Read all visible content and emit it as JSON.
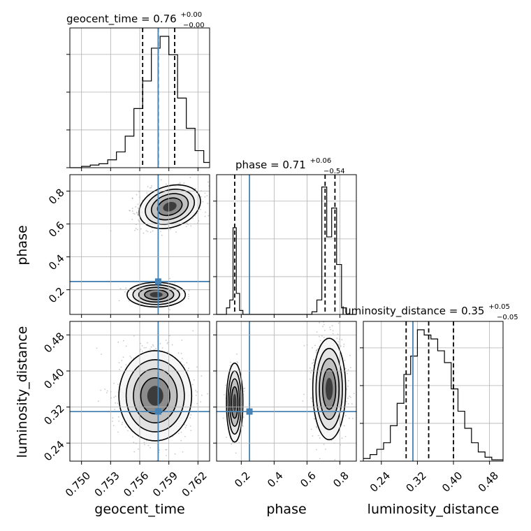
{
  "colors": {
    "truth": "#4682b4",
    "hist": "#000000",
    "grid": "#b0b0b0",
    "scatter": "#9a9a9a"
  },
  "titles": {
    "geocent_time": {
      "name": "geocent_time",
      "eq": " = ",
      "value": "0.76",
      "plus": "+0.00",
      "minus": "−0.00"
    },
    "phase": {
      "name": "phase",
      "eq": " = ",
      "value": "0.71",
      "plus": "+0.06",
      "minus": "−0.54"
    },
    "luminosity_distance": {
      "name": "luminosity_distance",
      "eq": " = ",
      "value": "0.35",
      "plus": "+0.05",
      "minus": "−0.05"
    }
  },
  "axis_labels": {
    "x0": "geocent_time",
    "x1": "phase",
    "x2": "luminosity_distance",
    "y1": "phase",
    "y2": "luminosity_distance"
  },
  "chart_data": {
    "type": "corner",
    "parameters": [
      "geocent_time",
      "phase",
      "luminosity_distance"
    ],
    "ranges": {
      "geocent_time": [
        0.7488,
        0.7632
      ],
      "phase": [
        0.05,
        0.9
      ],
      "luminosity_distance": [
        0.2,
        0.51
      ]
    },
    "ticks": {
      "geocent_time": [
        "0.750",
        "0.753",
        "0.756",
        "0.759",
        "0.762"
      ],
      "phase": [
        "0.2",
        "0.4",
        "0.6",
        "0.8"
      ],
      "luminosity_distance": [
        "0.24",
        "0.32",
        "0.40",
        "0.48"
      ]
    },
    "truths": {
      "geocent_time": 0.7579,
      "phase": 0.25,
      "luminosity_distance": 0.31
    },
    "quantiles": {
      "geocent_time": [
        0.7563,
        0.7579,
        0.7596
      ],
      "phase": [
        0.16,
        0.71,
        0.77
      ],
      "luminosity_distance": [
        0.295,
        0.345,
        0.4
      ]
    },
    "histograms": {
      "geocent_time": {
        "edges": [
          0.7488,
          0.75,
          0.7509,
          0.7518,
          0.7527,
          0.7536,
          0.7545,
          0.7554,
          0.7563,
          0.7572,
          0.7581,
          0.759,
          0.7599,
          0.7608,
          0.7617,
          0.7626,
          0.7632
        ],
        "counts": [
          0,
          0.01,
          0.02,
          0.03,
          0.06,
          0.12,
          0.24,
          0.45,
          0.66,
          0.91,
          1.0,
          0.86,
          0.53,
          0.3,
          0.13,
          0.04
        ]
      },
      "phase": {
        "edges": [
          0.05,
          0.11,
          0.13,
          0.15,
          0.17,
          0.19,
          0.21,
          0.29,
          0.63,
          0.66,
          0.69,
          0.72,
          0.75,
          0.78,
          0.81,
          0.84,
          0.9
        ],
        "counts": [
          0,
          0.05,
          0.11,
          0.66,
          0.16,
          0.03,
          0,
          0,
          0.02,
          0.11,
          0.97,
          0.59,
          0.81,
          0.38,
          0.05,
          0
        ]
      },
      "luminosity_distance": {
        "edges": [
          0.2,
          0.215,
          0.23,
          0.245,
          0.26,
          0.275,
          0.29,
          0.305,
          0.32,
          0.335,
          0.35,
          0.365,
          0.38,
          0.395,
          0.41,
          0.425,
          0.44,
          0.455,
          0.47,
          0.485,
          0.51
        ],
        "counts": [
          0.02,
          0.05,
          0.09,
          0.14,
          0.27,
          0.44,
          0.66,
          0.8,
          1.0,
          0.96,
          0.93,
          0.84,
          0.75,
          0.55,
          0.38,
          0.25,
          0.14,
          0.07,
          0.03,
          0.01
        ]
      }
    },
    "density_blobs": {
      "phase_vs_geocent_time": [
        {
          "cx": 0.7591,
          "cy": 0.705,
          "sx": 0.0013,
          "sy": 0.05,
          "rot": -18,
          "w": 0.86
        },
        {
          "cx": 0.7577,
          "cy": 0.17,
          "sx": 0.0012,
          "sy": 0.03,
          "rot": 0,
          "w": 0.14
        }
      ],
      "luminosity_distance_vs_geocent_time": [
        {
          "cx": 0.7576,
          "cy": 0.345,
          "sx": 0.0015,
          "sy": 0.04,
          "rot": 0,
          "w": 1.0
        }
      ],
      "luminosity_distance_vs_phase": [
        {
          "cx": 0.735,
          "cy": 0.36,
          "sx": 0.04,
          "sy": 0.045,
          "rot": 0,
          "w": 0.82
        },
        {
          "cx": 0.16,
          "cy": 0.33,
          "sx": 0.02,
          "sy": 0.035,
          "rot": 0,
          "w": 0.18
        }
      ]
    }
  }
}
